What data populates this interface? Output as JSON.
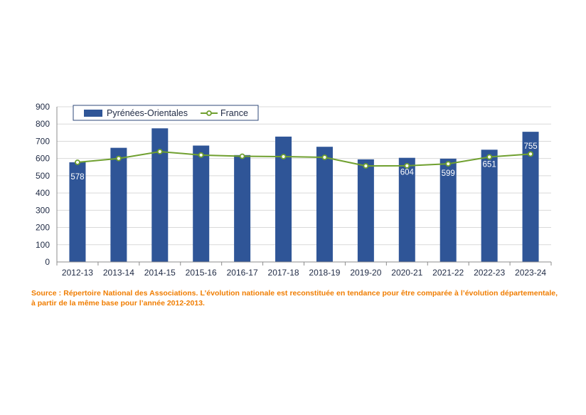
{
  "chart_data": {
    "type": "bar",
    "categories": [
      "2012-13",
      "2013-14",
      "2014-15",
      "2015-16",
      "2016-17",
      "2017-18",
      "2018-19",
      "2019-20",
      "2020-21",
      "2021-22",
      "2022-23",
      "2023-24"
    ],
    "series": [
      {
        "name": "Pyrénées-Orientales",
        "kind": "bar",
        "color": "#2f5597",
        "values": [
          578,
          662,
          775,
          675,
          620,
          727,
          668,
          595,
          604,
          599,
          651,
          755
        ]
      },
      {
        "name": "France",
        "kind": "line",
        "color": "#70a030",
        "values": [
          578,
          600,
          640,
          620,
          613,
          611,
          607,
          557,
          558,
          569,
          609,
          626
        ]
      }
    ],
    "data_labels": [
      {
        "category": "2012-13",
        "text": "578"
      },
      {
        "category": "2020-21",
        "text": "604"
      },
      {
        "category": "2021-22",
        "text": "599"
      },
      {
        "category": "2022-23",
        "text": "651"
      },
      {
        "category": "2023-24",
        "text": "755"
      }
    ],
    "y_ticks": [
      "0",
      "100",
      "200",
      "300",
      "400",
      "500",
      "600",
      "700",
      "800",
      "900"
    ],
    "ylim": [
      0,
      900
    ],
    "grid": true,
    "legend": [
      "Pyrénées-Orientales",
      "France"
    ],
    "legend_position": "top-left"
  },
  "source_note": "Source : Répertoire National des Associations. L’évolution nationale est reconstituée en tendance pour être comparée à l’évolution départementale, à partir de la même base pour l’année 2012-2013."
}
